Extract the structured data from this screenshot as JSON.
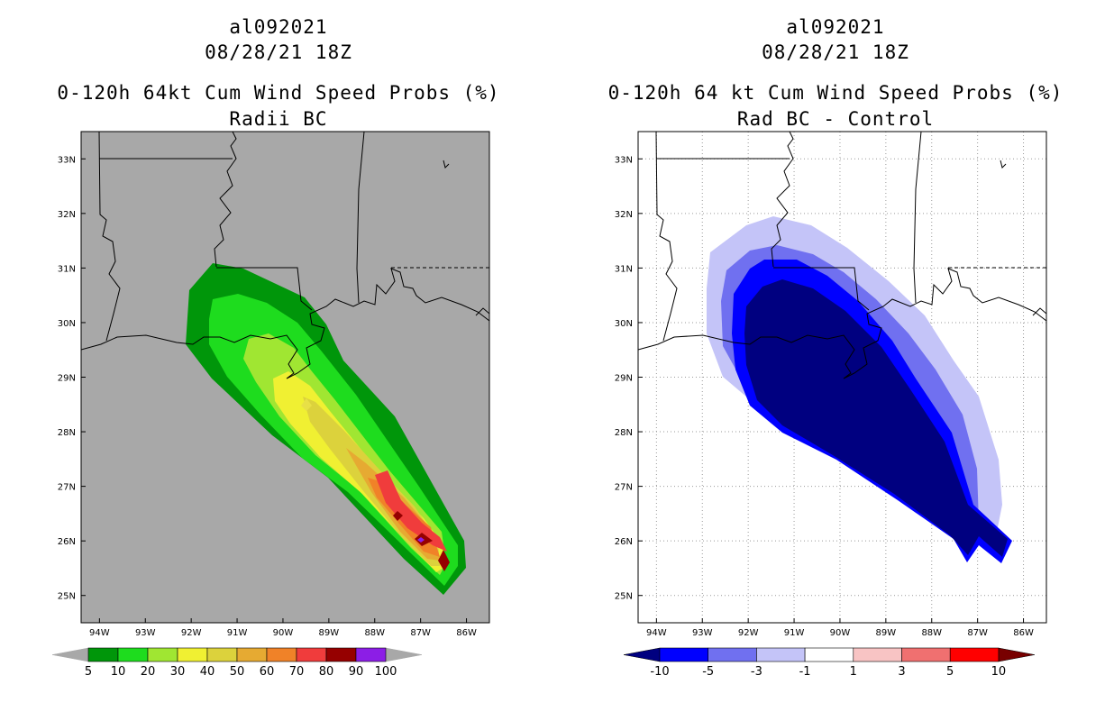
{
  "panels": [
    {
      "id": "left",
      "storm_id": "al092021",
      "datetime": "08/28/21 18Z",
      "title": "0-120h 64kt Cum Wind Speed Probs (%)",
      "subtitle": "Radii BC",
      "background": "#a8a8a8",
      "grid": false,
      "colorbar": {
        "colors": [
          "#00960a",
          "#1edc1e",
          "#a0e632",
          "#f0f032",
          "#dcd23c",
          "#e6aa32",
          "#f08228",
          "#f03c3c",
          "#960000",
          "#8c1ee6"
        ],
        "labels": [
          "5",
          "10",
          "20",
          "30",
          "40",
          "50",
          "60",
          "70",
          "80",
          "90",
          "100"
        ],
        "arrow_color": "#a8a8a8"
      }
    },
    {
      "id": "right",
      "storm_id": "al092021",
      "datetime": "08/28/21 18Z",
      "title": "0-120h 64 kt Cum Wind Speed Probs (%)",
      "subtitle": "Rad BC - Control",
      "background": "#ffffff",
      "grid": true,
      "colorbar": {
        "colors": [
          "#0000ff",
          "#7070f0",
          "#c4c4f8",
          "#ffffff",
          "#f8c4c4",
          "#f07070",
          "#ff0000"
        ],
        "labels": [
          "-10",
          "-5",
          "-3",
          "-1",
          "1",
          "3",
          "5",
          "10"
        ],
        "arrow_left": "#000080",
        "arrow_right": "#780000"
      }
    }
  ],
  "axes": {
    "lon_labels": [
      "94W",
      "93W",
      "92W",
      "91W",
      "90W",
      "89W",
      "88W",
      "87W",
      "86W"
    ],
    "lat_labels": [
      "25N",
      "26N",
      "27N",
      "28N",
      "29N",
      "30N",
      "31N",
      "32N",
      "33N"
    ],
    "lon_range": [
      94.4,
      85.5
    ],
    "lat_range": [
      24.5,
      33.5
    ]
  }
}
